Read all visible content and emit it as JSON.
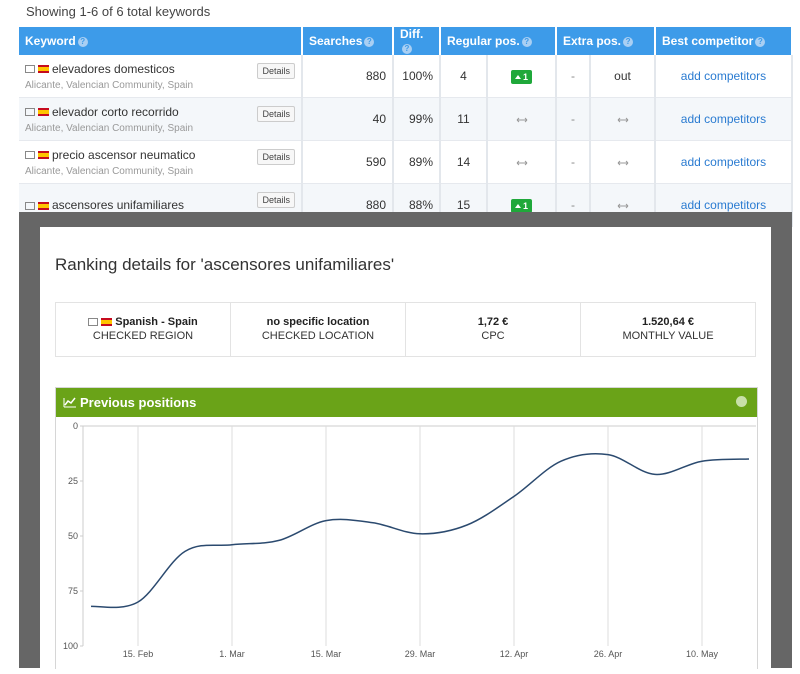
{
  "header": {
    "summary": "Showing 1-6 of 6 total keywords"
  },
  "table": {
    "columns": [
      "Keyword",
      "Searches",
      "Diff.",
      "Regular pos.",
      "Extra pos.",
      "Best competitor"
    ],
    "rows": [
      {
        "keyword": "elevadores domesticos",
        "location": "Alicante, Valencian Community, Spain",
        "details": "Details",
        "searches": 880,
        "diff": "100%",
        "position": 4,
        "change": 1,
        "extra": "-",
        "extra_status": "out",
        "competitor": "add competitors"
      },
      {
        "keyword": "elevador corto recorrido",
        "location": "Alicante, Valencian Community, Spain",
        "details": "Details",
        "searches": 40,
        "diff": "99%",
        "position": 11,
        "extra": "-",
        "competitor": "add competitors"
      },
      {
        "keyword": "precio ascensor neumatico",
        "location": "Alicante, Valencian Community, Spain",
        "details": "Details",
        "searches": 590,
        "diff": "89%",
        "position": 14,
        "extra": "-",
        "competitor": "add competitors"
      },
      {
        "keyword": "ascensores unifamiliares",
        "details": "Details",
        "searches": 880,
        "diff": "88%",
        "position": 15,
        "change": 1,
        "extra": "-",
        "competitor": "add competitors"
      }
    ]
  },
  "modal": {
    "title": "Ranking details for 'ascensores unifamiliares'",
    "info": [
      {
        "value": "Spanish - Spain",
        "label": "CHECKED REGION"
      },
      {
        "value": "no specific location",
        "label": "CHECKED LOCATION"
      },
      {
        "value": "1,72 €",
        "label": "CPC"
      },
      {
        "value": "1.520,64 €",
        "label": "MONTHLY VALUE"
      }
    ]
  },
  "chart_data": {
    "type": "line",
    "title": "Previous positions",
    "x": [
      "8. Feb",
      "15. Feb",
      "22. Feb",
      "1. Mar",
      "8. Mar",
      "15. Mar",
      "22. Mar",
      "29. Mar",
      "5. Apr",
      "12. Apr",
      "19. Apr",
      "26. Apr",
      "3. May",
      "10. May",
      "17. May"
    ],
    "values": [
      82,
      80,
      57,
      54,
      52,
      43,
      44,
      49,
      45,
      32,
      16,
      13,
      22,
      16,
      15
    ],
    "color": "#2b4a6f",
    "ylim": [
      0,
      100
    ],
    "yticks": [
      0,
      25,
      50,
      75,
      100
    ],
    "y_inverted": true,
    "xticks": [
      "15. Feb",
      "1. Mar",
      "15. Mar",
      "29. Mar",
      "12. Apr",
      "26. Apr",
      "10. May"
    ],
    "grid": "x"
  }
}
